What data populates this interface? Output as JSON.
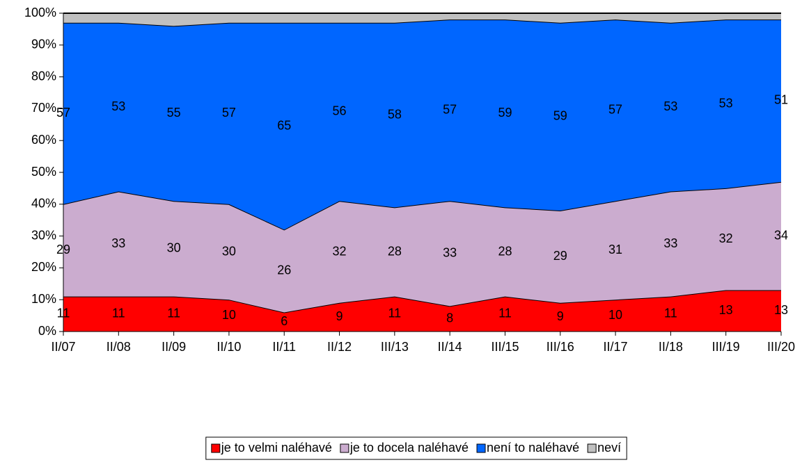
{
  "chart_data": {
    "type": "stacked_area",
    "categories": [
      "II/07",
      "II/08",
      "II/09",
      "II/10",
      "II/11",
      "II/12",
      "III/13",
      "II/14",
      "III/15",
      "III/16",
      "II/17",
      "II/18",
      "III/19",
      "III/20"
    ],
    "series": [
      {
        "name": "je to velmi naléhavé",
        "color": "#ff0000",
        "values": [
          11,
          11,
          11,
          10,
          6,
          9,
          11,
          8,
          11,
          9,
          10,
          11,
          13,
          13
        ]
      },
      {
        "name": "je to docela naléhavé",
        "color": "#cbaccf",
        "values": [
          29,
          33,
          30,
          30,
          26,
          32,
          28,
          33,
          28,
          29,
          31,
          33,
          32,
          34
        ]
      },
      {
        "name": "není to naléhavé",
        "color": "#0066ff",
        "values": [
          57,
          53,
          55,
          57,
          65,
          56,
          58,
          57,
          59,
          59,
          57,
          53,
          53,
          51
        ]
      },
      {
        "name": "neví",
        "color": "#c0c0c0",
        "values": [
          3,
          3,
          4,
          3,
          3,
          3,
          3,
          2,
          2,
          3,
          2,
          3,
          2,
          2
        ]
      }
    ],
    "labeled_series": [
      0,
      1,
      2
    ],
    "ylim": [
      0,
      100
    ],
    "yticks": [
      {
        "value": 0,
        "label": "0%"
      },
      {
        "value": 10,
        "label": "10%"
      },
      {
        "value": 20,
        "label": "20%"
      },
      {
        "value": 30,
        "label": "30%"
      },
      {
        "value": 40,
        "label": "40%"
      },
      {
        "value": 50,
        "label": "50%"
      },
      {
        "value": 60,
        "label": "60%"
      },
      {
        "value": 70,
        "label": "70%"
      },
      {
        "value": 80,
        "label": "80%"
      },
      {
        "value": 90,
        "label": "90%"
      },
      {
        "value": 100,
        "label": "100%"
      }
    ]
  }
}
